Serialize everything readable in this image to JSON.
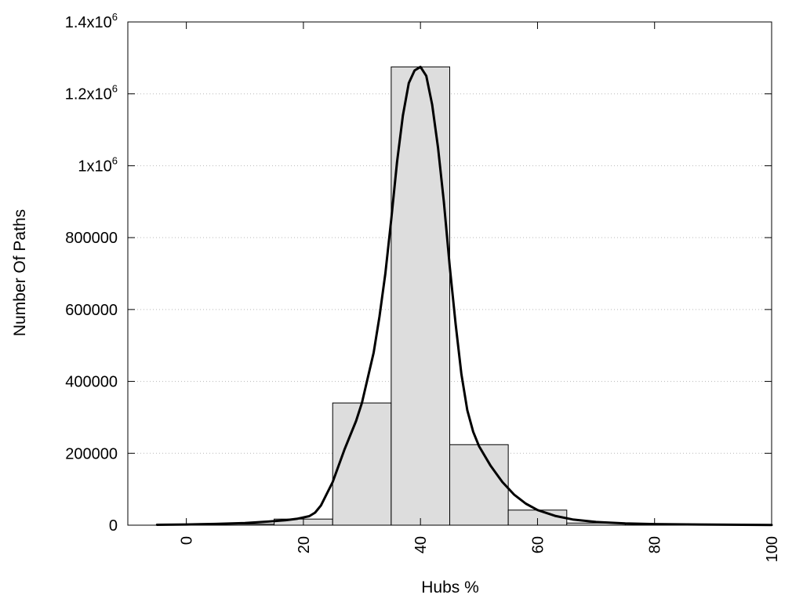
{
  "chart_data": {
    "type": "bar",
    "xlabel": "Hubs %",
    "ylabel": "Number Of Paths",
    "xlim": [
      -10,
      100
    ],
    "ylim": [
      0,
      1400000
    ],
    "grid": {
      "horizontal": true,
      "style": "dotted"
    },
    "x_ticks": [
      {
        "value": 0,
        "label": "0"
      },
      {
        "value": 20,
        "label": "20"
      },
      {
        "value": 40,
        "label": "40"
      },
      {
        "value": 60,
        "label": "60"
      },
      {
        "value": 80,
        "label": "80"
      },
      {
        "value": 100,
        "label": "100"
      }
    ],
    "y_ticks": [
      {
        "value": 0,
        "base": "0",
        "exp": ""
      },
      {
        "value": 200000,
        "base": "200000",
        "exp": ""
      },
      {
        "value": 400000,
        "base": "400000",
        "exp": ""
      },
      {
        "value": 600000,
        "base": "600000",
        "exp": ""
      },
      {
        "value": 800000,
        "base": "800000",
        "exp": ""
      },
      {
        "value": 1000000,
        "base": "1x10",
        "exp": "6"
      },
      {
        "value": 1200000,
        "base": "1.2x10",
        "exp": "6"
      },
      {
        "value": 1400000,
        "base": "1.4x10",
        "exp": "6"
      }
    ],
    "bins": [
      {
        "x0": -5,
        "x1": 5,
        "value": 1500
      },
      {
        "x0": 5,
        "x1": 15,
        "value": 3000
      },
      {
        "x0": 15,
        "x1": 25,
        "value": 17000
      },
      {
        "x0": 25,
        "x1": 35,
        "value": 340000
      },
      {
        "x0": 35,
        "x1": 45,
        "value": 1275000
      },
      {
        "x0": 45,
        "x1": 55,
        "value": 224000
      },
      {
        "x0": 55,
        "x1": 65,
        "value": 42000
      },
      {
        "x0": 65,
        "x1": 75,
        "value": 6000
      },
      {
        "x0": 75,
        "x1": 85,
        "value": 3000
      },
      {
        "x0": 85,
        "x1": 95,
        "value": 1500
      },
      {
        "x0": 95,
        "x1": 105,
        "value": 800
      }
    ],
    "curve": {
      "x": [
        -5,
        0,
        5,
        10,
        14,
        17,
        19,
        21,
        22,
        23,
        25,
        27,
        29,
        30,
        32,
        33,
        34,
        35,
        36,
        37,
        38,
        39,
        40,
        41,
        42,
        43,
        44,
        45,
        46,
        47,
        48,
        49,
        50,
        52,
        54,
        56,
        58,
        60,
        63,
        66,
        70,
        75,
        80,
        90,
        100
      ],
      "y": [
        1000,
        2000,
        3500,
        6000,
        10000,
        14000,
        18000,
        25000,
        35000,
        55000,
        120000,
        210000,
        290000,
        340000,
        480000,
        580000,
        700000,
        850000,
        1010000,
        1140000,
        1230000,
        1265000,
        1275000,
        1250000,
        1170000,
        1050000,
        900000,
        720000,
        560000,
        420000,
        320000,
        260000,
        220000,
        165000,
        120000,
        85000,
        60000,
        42000,
        26000,
        16000,
        9000,
        5000,
        3000,
        1500,
        500
      ]
    }
  }
}
